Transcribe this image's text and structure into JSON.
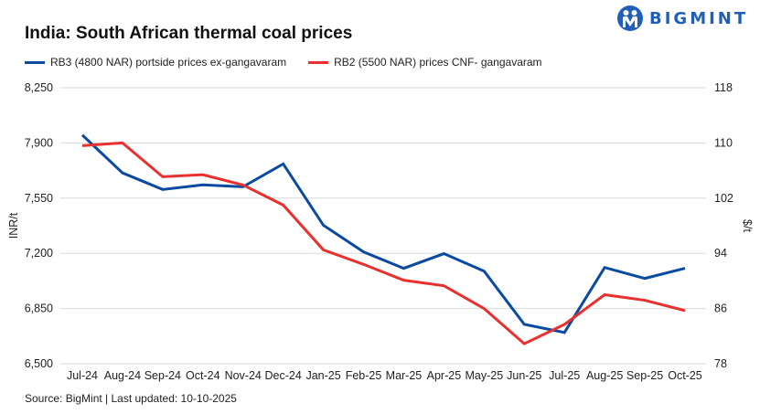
{
  "header": {
    "title": "India: South African thermal coal prices",
    "logo_text": "BIGMINT"
  },
  "footer": {
    "source": "Source: BigMint | Last updated: 10-10-2025"
  },
  "chart_data": {
    "type": "line",
    "title": "India: South African thermal coal prices",
    "categories": [
      "Jul-24",
      "Aug-24",
      "Sep-24",
      "Oct-24",
      "Nov-24",
      "Dec-24",
      "Jan-25",
      "Feb-25",
      "Mar-25",
      "Apr-25",
      "May-25",
      "Jun-25",
      "Jul-25",
      "Aug-25",
      "Sep-25",
      "Oct-25"
    ],
    "ylabel": "INR/t",
    "y2label": "$/t",
    "ylim": [
      6500,
      8250
    ],
    "yticks": [
      "6,500",
      "6,850",
      "7,200",
      "7,550",
      "7,900",
      "8,250"
    ],
    "y2lim": [
      78,
      118
    ],
    "y2ticks": [
      "78",
      "86",
      "94",
      "102",
      "110",
      "118"
    ],
    "grid": true,
    "legend_position": "top",
    "series": [
      {
        "name": "RB3 (4800 NAR) portside prices ex-gangavaram",
        "axis": "left",
        "color": "#0a4aa0",
        "values": [
          7950,
          7710,
          7605,
          7634,
          7622,
          7767,
          7378,
          7209,
          7105,
          7198,
          7087,
          6750,
          6698,
          7110,
          7041,
          7105
        ]
      },
      {
        "name": "RB2 (5500 NAR) prices CNF- gangavaram",
        "axis": "right",
        "color": "#e8302e",
        "values": [
          109.6,
          110.0,
          105.1,
          105.4,
          103.9,
          101.0,
          94.5,
          92.4,
          90.1,
          89.3,
          86.0,
          80.9,
          83.7,
          88.0,
          87.2,
          85.7
        ]
      }
    ]
  }
}
